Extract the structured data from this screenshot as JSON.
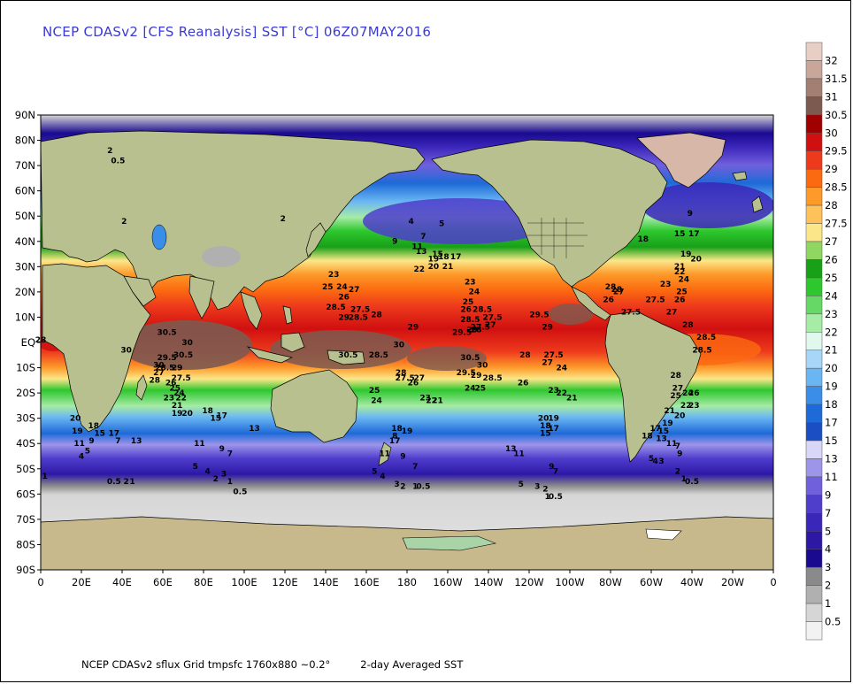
{
  "title": "NCEP CDASv2 [CFS Reanalysis] SST [°C] 06Z07MAY2016",
  "footer": {
    "source": "NCEP CDASv2 sflux Grid tmpsfc 1760x880 ~0.2°",
    "product": "2-day Averaged SST"
  },
  "map": {
    "projection": "equirectangular",
    "lon_range": [
      0,
      360
    ],
    "lat_range": [
      -90,
      90
    ],
    "lat_labels": [
      "90N",
      "80N",
      "70N",
      "60N",
      "50N",
      "40N",
      "30N",
      "20N",
      "10N",
      "EQ",
      "10S",
      "20S",
      "30S",
      "40S",
      "50S",
      "60S",
      "70S",
      "80S",
      "90S"
    ],
    "lon_labels": [
      "0",
      "20E",
      "40E",
      "60E",
      "80E",
      "100E",
      "120E",
      "140E",
      "160E",
      "180",
      "160W",
      "140W",
      "120W",
      "100W",
      "80W",
      "60W",
      "40W",
      "20W",
      "0"
    ],
    "colors": {
      "land": "#b9c08f",
      "ice": "#e3e3e3",
      "sea_ice_shelf": "#a8d4a8",
      "coast": "#000000"
    }
  },
  "colorbar": {
    "levels": [
      {
        "label": "32",
        "color": "#e8cfc6"
      },
      {
        "label": "31.5",
        "color": "#c9a69a"
      },
      {
        "label": "31",
        "color": "#a37e72"
      },
      {
        "label": "30.5",
        "color": "#7d5a50"
      },
      {
        "label": "30",
        "color": "#a00000"
      },
      {
        "label": "29.5",
        "color": "#d01010"
      },
      {
        "label": "29",
        "color": "#ee3a1c"
      },
      {
        "label": "28.5",
        "color": "#fb6a10"
      },
      {
        "label": "28",
        "color": "#fd9a2a"
      },
      {
        "label": "27.5",
        "color": "#fdc25a"
      },
      {
        "label": "27",
        "color": "#fbe789"
      },
      {
        "label": "26",
        "color": "#8fd760"
      },
      {
        "label": "25",
        "color": "#18a018"
      },
      {
        "label": "24",
        "color": "#2ec72e"
      },
      {
        "label": "23",
        "color": "#66d866"
      },
      {
        "label": "22",
        "color": "#a6eba6"
      },
      {
        "label": "21",
        "color": "#e0f8ee"
      },
      {
        "label": "20",
        "color": "#a8d6f8"
      },
      {
        "label": "19",
        "color": "#6ab6f3"
      },
      {
        "label": "18",
        "color": "#3a8ee8"
      },
      {
        "label": "17",
        "color": "#1e6ad8"
      },
      {
        "label": "15",
        "color": "#1a4ec2"
      },
      {
        "label": "13",
        "color": "#d9d7f7"
      },
      {
        "label": "11",
        "color": "#9d95ea"
      },
      {
        "label": "9",
        "color": "#7060dc"
      },
      {
        "label": "7",
        "color": "#4f3dcc"
      },
      {
        "label": "5",
        "color": "#3b26ba"
      },
      {
        "label": "4",
        "color": "#2d18a6"
      },
      {
        "label": "3",
        "color": "#1a0a90"
      },
      {
        "label": "2",
        "color": "#8a8a8a"
      },
      {
        "label": "1",
        "color": "#b0b0b0"
      },
      {
        "label": "0.5",
        "color": "#d6d6d6"
      },
      {
        "label": "",
        "color": "#f2f2f2"
      }
    ]
  },
  "contour_labels": [
    {
      "t": "30.5",
      "lon": 62,
      "lat": 3
    },
    {
      "t": "30",
      "lon": 72,
      "lat": -1
    },
    {
      "t": "30.5",
      "lon": 70,
      "lat": -6
    },
    {
      "t": "30",
      "lon": 42,
      "lat": -4
    },
    {
      "t": "29.5",
      "lon": 62,
      "lat": -7
    },
    {
      "t": "30",
      "lon": 58,
      "lat": -10
    },
    {
      "t": "28.5",
      "lon": 61,
      "lat": -11
    },
    {
      "t": "29",
      "lon": 67,
      "lat": -11
    },
    {
      "t": "27",
      "lon": 58,
      "lat": -13
    },
    {
      "t": "28",
      "lon": 56,
      "lat": -16
    },
    {
      "t": "27.5",
      "lon": 69,
      "lat": -15
    },
    {
      "t": "26",
      "lon": 64,
      "lat": -17
    },
    {
      "t": "25",
      "lon": 66,
      "lat": -19
    },
    {
      "t": "24",
      "lon": 68,
      "lat": -21
    },
    {
      "t": "23",
      "lon": 63,
      "lat": -23
    },
    {
      "t": "22",
      "lon": 69,
      "lat": -23
    },
    {
      "t": "21",
      "lon": 67,
      "lat": -26
    },
    {
      "t": "19",
      "lon": 67,
      "lat": -29
    },
    {
      "t": "20",
      "lon": 72,
      "lat": -29
    },
    {
      "t": "18",
      "lon": 82,
      "lat": -28
    },
    {
      "t": "17",
      "lon": 89,
      "lat": -30
    },
    {
      "t": "15",
      "lon": 86,
      "lat": -31
    },
    {
      "t": "13",
      "lon": 105,
      "lat": -35
    },
    {
      "t": "11",
      "lon": 78,
      "lat": -41
    },
    {
      "t": "9",
      "lon": 89,
      "lat": -43
    },
    {
      "t": "7",
      "lon": 93,
      "lat": -45
    },
    {
      "t": "5",
      "lon": 76,
      "lat": -50
    },
    {
      "t": "4",
      "lon": 82,
      "lat": -52
    },
    {
      "t": "3",
      "lon": 90,
      "lat": -53
    },
    {
      "t": "2",
      "lon": 86,
      "lat": -55
    },
    {
      "t": "1",
      "lon": 93,
      "lat": -56
    },
    {
      "t": "0.5",
      "lon": 98,
      "lat": -60
    },
    {
      "t": "20",
      "lon": 17,
      "lat": -31
    },
    {
      "t": "19",
      "lon": 18,
      "lat": -36
    },
    {
      "t": "18",
      "lon": 26,
      "lat": -34
    },
    {
      "t": "15",
      "lon": 29,
      "lat": -37
    },
    {
      "t": "17",
      "lon": 36,
      "lat": -37
    },
    {
      "t": "7",
      "lon": 38,
      "lat": -40
    },
    {
      "t": "11",
      "lon": 19,
      "lat": -41
    },
    {
      "t": "9",
      "lon": 25,
      "lat": -40
    },
    {
      "t": "5",
      "lon": 23,
      "lat": -44
    },
    {
      "t": "4",
      "lon": 20,
      "lat": -46
    },
    {
      "t": "13",
      "lon": 47,
      "lat": -40
    },
    {
      "t": "0.5",
      "lon": 36,
      "lat": -56
    },
    {
      "t": "2",
      "lon": 42,
      "lat": -56
    },
    {
      "t": "1",
      "lon": 45,
      "lat": -56
    },
    {
      "t": "1",
      "lon": 2,
      "lat": -54
    },
    {
      "t": "23",
      "lon": 144,
      "lat": 26
    },
    {
      "t": "25",
      "lon": 141,
      "lat": 21
    },
    {
      "t": "24",
      "lon": 148,
      "lat": 21
    },
    {
      "t": "27",
      "lon": 154,
      "lat": 20
    },
    {
      "t": "26",
      "lon": 149,
      "lat": 17
    },
    {
      "t": "28.5",
      "lon": 145,
      "lat": 13
    },
    {
      "t": "27.5",
      "lon": 157,
      "lat": 12
    },
    {
      "t": "28",
      "lon": 165,
      "lat": 10
    },
    {
      "t": "29",
      "lon": 149,
      "lat": 9
    },
    {
      "t": "28.5",
      "lon": 156,
      "lat": 9
    },
    {
      "t": "30.5",
      "lon": 151,
      "lat": -6
    },
    {
      "t": "28.5",
      "lon": 166,
      "lat": -6
    },
    {
      "t": "30",
      "lon": 176,
      "lat": -2
    },
    {
      "t": "28",
      "lon": 177,
      "lat": -13
    },
    {
      "t": "27.5",
      "lon": 179,
      "lat": -15
    },
    {
      "t": "27",
      "lon": 186,
      "lat": -15
    },
    {
      "t": "26",
      "lon": 183,
      "lat": -17
    },
    {
      "t": "25",
      "lon": 164,
      "lat": -20
    },
    {
      "t": "24",
      "lon": 165,
      "lat": -24
    },
    {
      "t": "23",
      "lon": 189,
      "lat": -23
    },
    {
      "t": "22",
      "lon": 192,
      "lat": -24
    },
    {
      "t": "21",
      "lon": 195,
      "lat": -24
    },
    {
      "t": "19",
      "lon": 180,
      "lat": -36
    },
    {
      "t": "18",
      "lon": 175,
      "lat": -35
    },
    {
      "t": "17",
      "lon": 174,
      "lat": -40
    },
    {
      "t": "8",
      "lon": 174,
      "lat": -38
    },
    {
      "t": "11",
      "lon": 169,
      "lat": -45
    },
    {
      "t": "9",
      "lon": 178,
      "lat": -46
    },
    {
      "t": "7",
      "lon": 184,
      "lat": -50
    },
    {
      "t": "5",
      "lon": 164,
      "lat": -52
    },
    {
      "t": "4",
      "lon": 168,
      "lat": -54
    },
    {
      "t": "3",
      "lon": 175,
      "lat": -57
    },
    {
      "t": "2",
      "lon": 178,
      "lat": -58
    },
    {
      "t": "1",
      "lon": 184,
      "lat": -58
    },
    {
      "t": "0.5",
      "lon": 188,
      "lat": -58
    },
    {
      "t": "29",
      "lon": 183,
      "lat": 5
    },
    {
      "t": "29.5",
      "lon": 207,
      "lat": 3
    },
    {
      "t": "29",
      "lon": 212,
      "lat": 4
    },
    {
      "t": "28",
      "lon": 214,
      "lat": 4
    },
    {
      "t": "27.5",
      "lon": 216,
      "lat": 5
    },
    {
      "t": "27",
      "lon": 221,
      "lat": 6
    },
    {
      "t": "28.5",
      "lon": 211,
      "lat": 8
    },
    {
      "t": "28.5",
      "lon": 217,
      "lat": 12
    },
    {
      "t": "27.5",
      "lon": 222,
      "lat": 9
    },
    {
      "t": "26",
      "lon": 209,
      "lat": 12
    },
    {
      "t": "25",
      "lon": 210,
      "lat": 15
    },
    {
      "t": "24",
      "lon": 213,
      "lat": 19
    },
    {
      "t": "23",
      "lon": 211,
      "lat": 23
    },
    {
      "t": "22",
      "lon": 186,
      "lat": 28
    },
    {
      "t": "20",
      "lon": 193,
      "lat": 29
    },
    {
      "t": "21",
      "lon": 200,
      "lat": 29
    },
    {
      "t": "19",
      "lon": 193,
      "lat": 32
    },
    {
      "t": "18",
      "lon": 198,
      "lat": 33
    },
    {
      "t": "17",
      "lon": 204,
      "lat": 33
    },
    {
      "t": "15",
      "lon": 195,
      "lat": 34
    },
    {
      "t": "13",
      "lon": 187,
      "lat": 35
    },
    {
      "t": "11",
      "lon": 185,
      "lat": 37
    },
    {
      "t": "9",
      "lon": 174,
      "lat": 39
    },
    {
      "t": "7",
      "lon": 188,
      "lat": 41
    },
    {
      "t": "5",
      "lon": 197,
      "lat": 46
    },
    {
      "t": "4",
      "lon": 182,
      "lat": 47
    },
    {
      "t": "30.5",
      "lon": 211,
      "lat": -7
    },
    {
      "t": "30",
      "lon": 217,
      "lat": -10
    },
    {
      "t": "29.5",
      "lon": 209,
      "lat": -13
    },
    {
      "t": "29",
      "lon": 214,
      "lat": -14
    },
    {
      "t": "28.5",
      "lon": 222,
      "lat": -15
    },
    {
      "t": "28",
      "lon": 238,
      "lat": -6
    },
    {
      "t": "26",
      "lon": 237,
      "lat": -17
    },
    {
      "t": "25",
      "lon": 216,
      "lat": -19
    },
    {
      "t": "24",
      "lon": 211,
      "lat": -19
    },
    {
      "t": "23",
      "lon": 252,
      "lat": -20
    },
    {
      "t": "22",
      "lon": 256,
      "lat": -21
    },
    {
      "t": "21",
      "lon": 261,
      "lat": -23
    },
    {
      "t": "20",
      "lon": 247,
      "lat": -31
    },
    {
      "t": "19",
      "lon": 252,
      "lat": -31
    },
    {
      "t": "18",
      "lon": 248,
      "lat": -34
    },
    {
      "t": "17",
      "lon": 252,
      "lat": -35
    },
    {
      "t": "15",
      "lon": 248,
      "lat": -37
    },
    {
      "t": "13",
      "lon": 231,
      "lat": -43
    },
    {
      "t": "11",
      "lon": 235,
      "lat": -45
    },
    {
      "t": "9",
      "lon": 251,
      "lat": -50
    },
    {
      "t": "7",
      "lon": 253,
      "lat": -52
    },
    {
      "t": "5",
      "lon": 236,
      "lat": -57
    },
    {
      "t": "3",
      "lon": 244,
      "lat": -58
    },
    {
      "t": "2",
      "lon": 248,
      "lat": -59
    },
    {
      "t": "1",
      "lon": 249,
      "lat": -62
    },
    {
      "t": "0.5",
      "lon": 253,
      "lat": -62
    },
    {
      "t": "29.5",
      "lon": 245,
      "lat": 10
    },
    {
      "t": "29",
      "lon": 249,
      "lat": 5
    },
    {
      "t": "27",
      "lon": 249,
      "lat": -9
    },
    {
      "t": "27.5",
      "lon": 252,
      "lat": -6
    },
    {
      "t": "24",
      "lon": 256,
      "lat": -11
    },
    {
      "t": "28",
      "lon": 280,
      "lat": 21
    },
    {
      "t": "28",
      "lon": 283,
      "lat": 20
    },
    {
      "t": "27.5",
      "lon": 290,
      "lat": 11
    },
    {
      "t": "27",
      "lon": 284,
      "lat": 19
    },
    {
      "t": "26",
      "lon": 279,
      "lat": 16
    },
    {
      "t": "27.5",
      "lon": 302,
      "lat": 16
    },
    {
      "t": "27",
      "lon": 310,
      "lat": 11
    },
    {
      "t": "28",
      "lon": 318,
      "lat": 6
    },
    {
      "t": "28.5",
      "lon": 327,
      "lat": 1
    },
    {
      "t": "28.5",
      "lon": 325,
      "lat": -4
    },
    {
      "t": "26",
      "lon": 314,
      "lat": 16
    },
    {
      "t": "25",
      "lon": 315,
      "lat": 19
    },
    {
      "t": "24",
      "lon": 316,
      "lat": 24
    },
    {
      "t": "23",
      "lon": 307,
      "lat": 22
    },
    {
      "t": "22",
      "lon": 314,
      "lat": 27
    },
    {
      "t": "21",
      "lon": 314,
      "lat": 29
    },
    {
      "t": "20",
      "lon": 322,
      "lat": 32
    },
    {
      "t": "19",
      "lon": 317,
      "lat": 34
    },
    {
      "t": "18",
      "lon": 296,
      "lat": 40
    },
    {
      "t": "17",
      "lon": 321,
      "lat": 42
    },
    {
      "t": "15",
      "lon": 314,
      "lat": 42
    },
    {
      "t": "9",
      "lon": 319,
      "lat": 50
    },
    {
      "t": "28",
      "lon": 312,
      "lat": -14
    },
    {
      "t": "27",
      "lon": 313,
      "lat": -19
    },
    {
      "t": "26",
      "lon": 321,
      "lat": -21
    },
    {
      "t": "24",
      "lon": 318,
      "lat": -21
    },
    {
      "t": "25",
      "lon": 312,
      "lat": -22
    },
    {
      "t": "23",
      "lon": 321,
      "lat": -26
    },
    {
      "t": "22",
      "lon": 317,
      "lat": -26
    },
    {
      "t": "21",
      "lon": 309,
      "lat": -28
    },
    {
      "t": "20",
      "lon": 314,
      "lat": -30
    },
    {
      "t": "19",
      "lon": 308,
      "lat": -33
    },
    {
      "t": "17",
      "lon": 302,
      "lat": -35
    },
    {
      "t": "15",
      "lon": 306,
      "lat": -36
    },
    {
      "t": "18",
      "lon": 298,
      "lat": -38
    },
    {
      "t": "13",
      "lon": 305,
      "lat": -39
    },
    {
      "t": "11",
      "lon": 310,
      "lat": -41
    },
    {
      "t": "9",
      "lon": 314,
      "lat": -45
    },
    {
      "t": "5",
      "lon": 300,
      "lat": -47
    },
    {
      "t": "4",
      "lon": 302,
      "lat": -48
    },
    {
      "t": "3",
      "lon": 305,
      "lat": -48
    },
    {
      "t": "7",
      "lon": 313,
      "lat": -42
    },
    {
      "t": "2",
      "lon": 313,
      "lat": -52
    },
    {
      "t": "1",
      "lon": 316,
      "lat": -55
    },
    {
      "t": "0.5",
      "lon": 320,
      "lat": -56
    },
    {
      "t": "2",
      "lon": 41,
      "lat": 47
    },
    {
      "t": "2",
      "lon": 119,
      "lat": 48
    },
    {
      "t": "2",
      "lon": 34,
      "lat": 75
    },
    {
      "t": "0.5",
      "lon": 38,
      "lat": 71
    },
    {
      "t": "28",
      "lon": -0.0,
      "lat": 0
    }
  ]
}
